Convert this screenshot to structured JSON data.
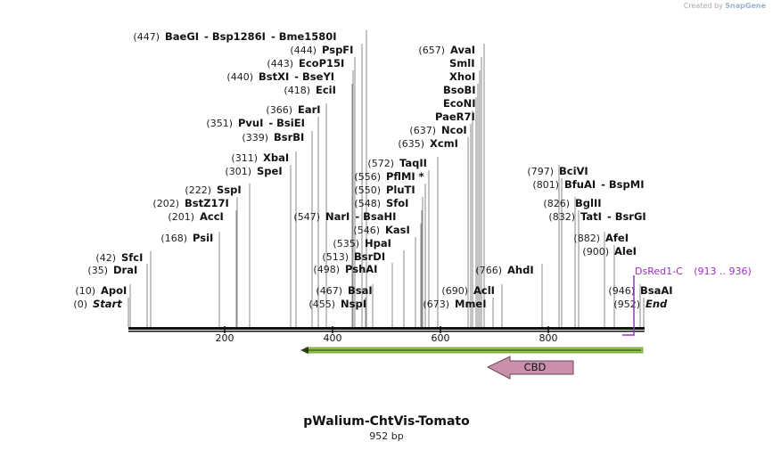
{
  "title": "pWalium-ChtVis-Tomato",
  "length_label": "952 bp",
  "credit": {
    "prefix": "Created by",
    "brand": "SnapGene"
  },
  "colors": {
    "orf": "#8fc63f",
    "cbd_fill": "#c98fab",
    "dsred": "#9b30c8",
    "line": "#888888"
  },
  "ruler": {
    "ticks": [
      "200",
      "400",
      "600",
      "800"
    ]
  },
  "features": {
    "orf_arrow": {
      "label": ""
    },
    "cbd": {
      "label": "CBD"
    },
    "dsred": {
      "label": "DsRed1-C",
      "range": "(913 .. 936)"
    }
  },
  "sites": [
    {
      "pos": "(0)",
      "name": "Start",
      "italic": true
    },
    {
      "pos": "(10)",
      "name": "ApoI"
    },
    {
      "pos": "(35)",
      "name": "DraI"
    },
    {
      "pos": "(42)",
      "name": "SfcI"
    },
    {
      "pos": "(168)",
      "name": "PsiI"
    },
    {
      "pos": "(201)",
      "name": "AccI"
    },
    {
      "pos": "(202)",
      "name": "BstZ17I"
    },
    {
      "pos": "(222)",
      "name": "SspI"
    },
    {
      "pos": "(301)",
      "name": "SpeI"
    },
    {
      "pos": "(311)",
      "name": "XbaI"
    },
    {
      "pos": "(339)",
      "name": "BsrBI"
    },
    {
      "pos": "(351)",
      "name": "PvuI",
      "name2": "BsiEI"
    },
    {
      "pos": "(366)",
      "name": "EarI"
    },
    {
      "pos": "(418)",
      "name": "EciI"
    },
    {
      "pos": "(440)",
      "name": "BstXI",
      "name2": "BseYI"
    },
    {
      "pos": "(443)",
      "name": "EcoP15I"
    },
    {
      "pos": "(444)",
      "name": "PspFI"
    },
    {
      "pos": "(447)",
      "name": "BaeGI",
      "name2": "Bsp1286I",
      "name3": "Bme1580I"
    },
    {
      "pos": "(455)",
      "name": "NspI"
    },
    {
      "pos": "(467)",
      "name": "BsaI"
    },
    {
      "pos": "(498)",
      "name": "PshAI"
    },
    {
      "pos": "(513)",
      "name": "BsrDI"
    },
    {
      "pos": "(535)",
      "name": "HpaI"
    },
    {
      "pos": "(546)",
      "name": "KasI"
    },
    {
      "pos": "(547)",
      "name": "NarI",
      "name2": "BsaHI"
    },
    {
      "pos": "(548)",
      "name": "SfoI"
    },
    {
      "pos": "(550)",
      "name": "PluTI"
    },
    {
      "pos": "(556)",
      "name": "PflMI *"
    },
    {
      "pos": "(572)",
      "name": "TaqII"
    },
    {
      "pos": "(635)",
      "name": "XcmI"
    },
    {
      "pos": "(637)",
      "name": "NcoI"
    },
    {
      "pos": "",
      "name": "PaeR7I"
    },
    {
      "pos": "",
      "name": "EcoNI"
    },
    {
      "pos": "",
      "name": "BsoBI"
    },
    {
      "pos": "",
      "name": "XhoI"
    },
    {
      "pos": "",
      "name": "SmlI"
    },
    {
      "pos": "(657)",
      "name": "AvaI"
    },
    {
      "pos": "(673)",
      "name": "MmeI"
    },
    {
      "pos": "(690)",
      "name": "AclI"
    },
    {
      "pos": "(766)",
      "name": "AhdI"
    },
    {
      "pos": "(797)",
      "name": "BciVI"
    },
    {
      "pos": "(801)",
      "name": "BfuAI",
      "name2": "BspMI"
    },
    {
      "pos": "(826)",
      "name": "BglII"
    },
    {
      "pos": "(832)",
      "name": "TatI",
      "name2": "BsrGI"
    },
    {
      "pos": "(882)",
      "name": "AfeI"
    },
    {
      "pos": "(900)",
      "name": "AleI"
    },
    {
      "pos": "(946)",
      "name": "BsaAI"
    },
    {
      "pos": "(952)",
      "name": "End",
      "italic": true
    }
  ]
}
